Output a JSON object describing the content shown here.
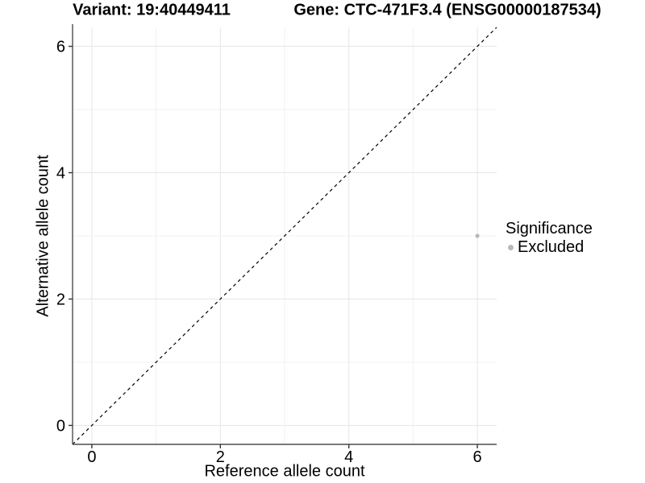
{
  "titles": {
    "variant": "Variant: 19:40449411",
    "gene": "Gene: CTC-471F3.4 (ENSG00000187534)"
  },
  "chart_data": {
    "type": "scatter",
    "title_left": "Variant: 19:40449411",
    "title_right": "Gene: CTC-471F3.4 (ENSG00000187534)",
    "xlabel": "Reference allele count",
    "ylabel": "Alternative allele count",
    "xlim": [
      -0.3,
      6.3
    ],
    "ylim": [
      -0.3,
      6.3
    ],
    "xticks": [
      0,
      2,
      4,
      6
    ],
    "yticks": [
      0,
      2,
      4,
      6
    ],
    "grid_positions": [
      0,
      1,
      2,
      3,
      4,
      5,
      6
    ],
    "grid": "on",
    "points": [
      {
        "x": 6,
        "y": 3,
        "significance": "Excluded"
      }
    ],
    "reference_line": {
      "type": "identity y=x",
      "style": "dashed",
      "color": "#000000"
    },
    "legend": {
      "title": "Significance",
      "position": "right",
      "entries": [
        {
          "label": "Excluded",
          "color": "#b9b9b9"
        }
      ]
    },
    "colors": {
      "point": "#b9b9b9",
      "grid_major": "#e6e6e6",
      "grid_minor": "#f0f0f0",
      "axis_line": "#4d4d4d",
      "tick_mark": "#333333",
      "text": "#000000"
    }
  }
}
